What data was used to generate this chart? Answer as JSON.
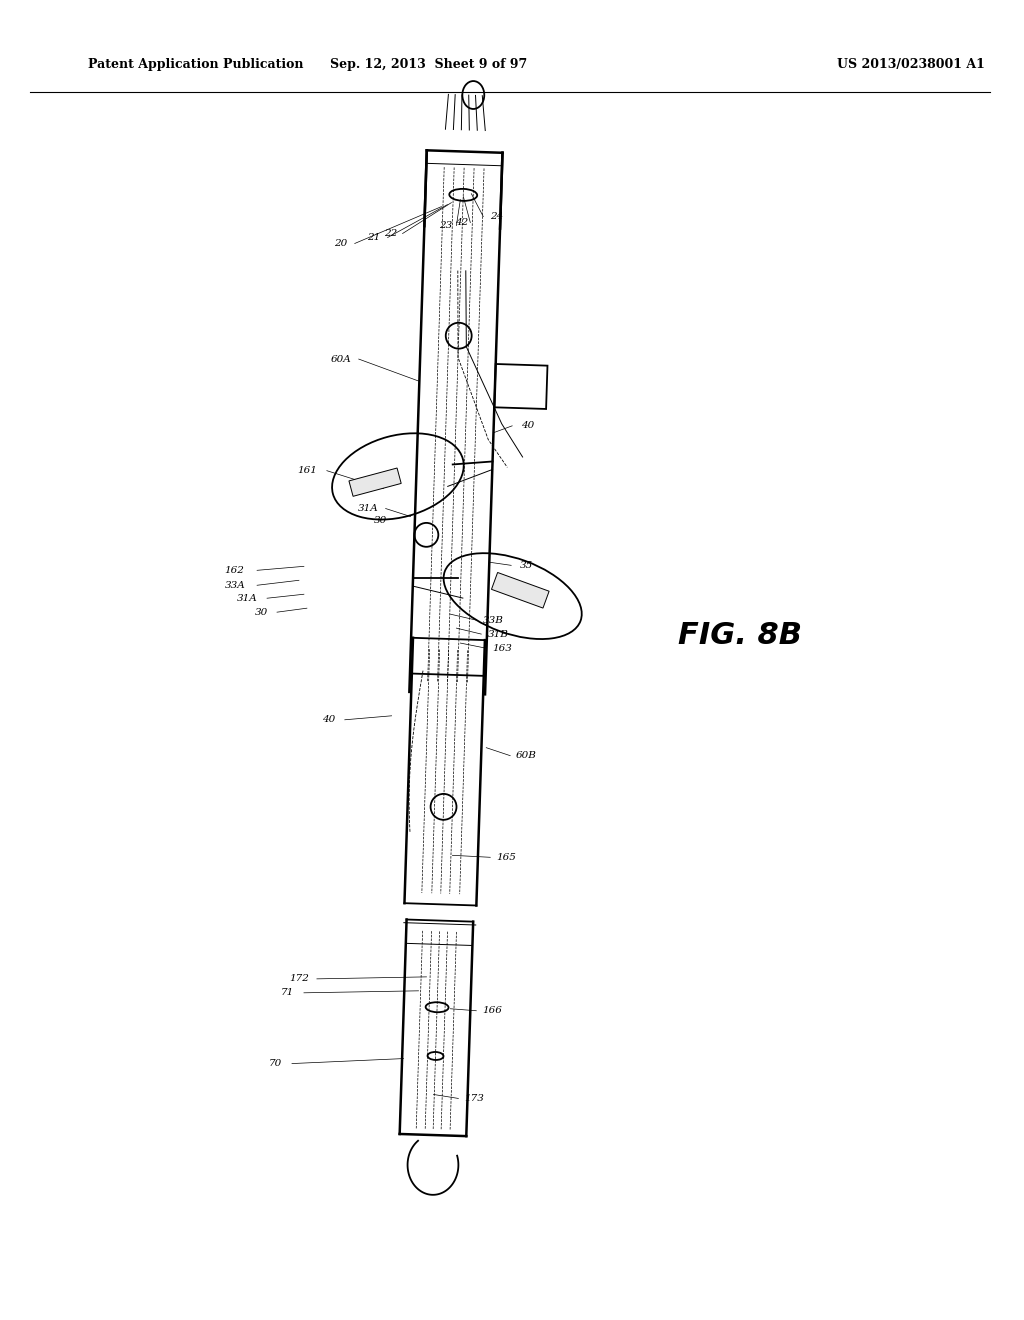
{
  "title_left": "Patent Application Publication",
  "title_center": "Sep. 12, 2013  Sheet 9 of 97",
  "title_right": "US 2013/0238001 A1",
  "fig_label": "FIG. 8B",
  "background_color": "#ffffff",
  "line_color": "#000000",
  "header_fontsize": 9,
  "label_fontsize": 7.5,
  "fig_label_fontsize": 22
}
